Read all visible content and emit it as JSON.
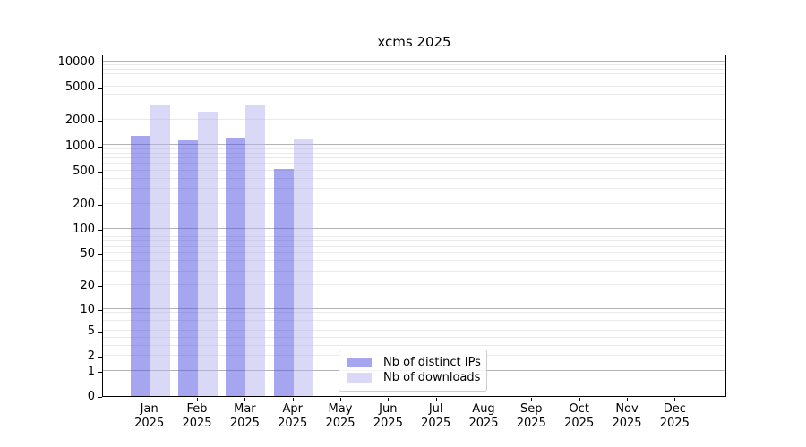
{
  "chart_data": {
    "type": "bar",
    "title": "xcms 2025",
    "x_axis": {
      "months": [
        "Jan",
        "Feb",
        "Mar",
        "Apr",
        "May",
        "Jun",
        "Jul",
        "Aug",
        "Sep",
        "Oct",
        "Nov",
        "Dec"
      ],
      "year": "2025"
    },
    "series": [
      {
        "name": "Nb of distinct IPs",
        "color": "rgba(75,75,225,0.5)",
        "values": [
          1280,
          1150,
          1230,
          525,
          0,
          0,
          0,
          0,
          0,
          0,
          0,
          0
        ]
      },
      {
        "name": "Nb of downloads",
        "color": "rgba(179,179,239,0.5)",
        "values": [
          3040,
          2530,
          2980,
          1160,
          0,
          0,
          0,
          0,
          0,
          0,
          0,
          0
        ]
      }
    ],
    "y_axis": {
      "scale": "log10(v+1)",
      "ylim": [
        0,
        10000
      ],
      "tick_labels": [
        0,
        1,
        2,
        5,
        10,
        20,
        50,
        100,
        200,
        500,
        1000,
        2000,
        5000,
        10000
      ],
      "major_gridlines": [
        1,
        10,
        100,
        1000,
        10000
      ],
      "minor_gridline_subs": [
        2,
        3,
        4,
        5,
        6,
        7,
        8,
        9
      ],
      "minor_gridline_decades": [
        1,
        10,
        100,
        1000
      ]
    },
    "legend": {
      "position": "lower-center",
      "items": [
        "Nb of distinct IPs",
        "Nb of downloads"
      ]
    },
    "grid": {
      "major_color": "#b4b4b4",
      "minor_color": "#e9e9e9",
      "spine_color": "#000000"
    }
  }
}
